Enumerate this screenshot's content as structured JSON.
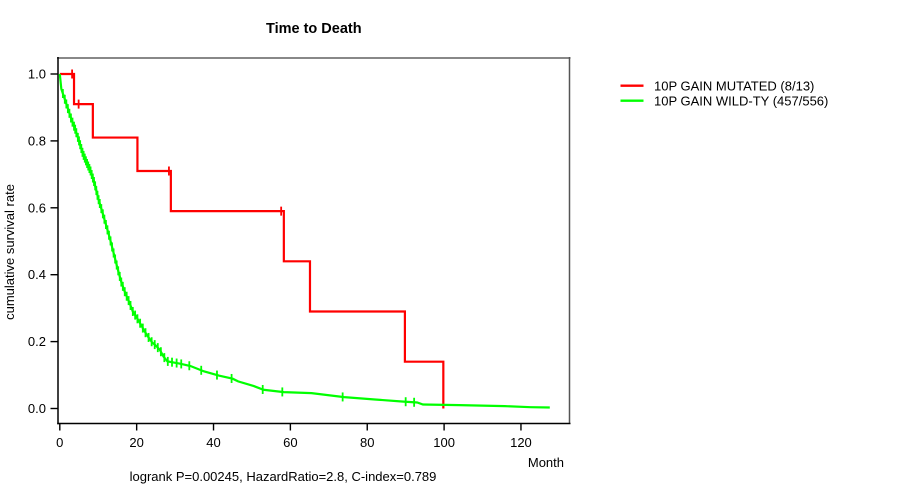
{
  "chart_data": {
    "type": "line",
    "subtype": "kaplan-meier-survival",
    "title": "Time to Death",
    "xlabel": "Month",
    "ylabel": "cumulative survival rate",
    "annotation": "logrank P=0.00245, HazardRatio=2.8, C-index=0.789",
    "xlim": [
      0,
      133
    ],
    "ylim": [
      0,
      1.04
    ],
    "x_ticks": [
      0,
      20,
      40,
      60,
      80,
      100,
      120
    ],
    "y_ticks": [
      0.0,
      0.2,
      0.4,
      0.6,
      0.8,
      1.0
    ],
    "y_tick_labels": [
      "0.0",
      "0.2",
      "0.4",
      "0.6",
      "0.8",
      "1.0"
    ],
    "grid": false,
    "legend_position": "right-outside",
    "series": [
      {
        "name": "10P GAIN MUTATED (8/13)",
        "color": "#ff0000",
        "style": "step",
        "points": [
          [
            0,
            1.0
          ],
          [
            3.7,
            0.91
          ],
          [
            8.6,
            0.81
          ],
          [
            20.2,
            0.71
          ],
          [
            28.9,
            0.59
          ],
          [
            58.3,
            0.44
          ],
          [
            65.1,
            0.29
          ],
          [
            89.8,
            0.14
          ],
          [
            99.8,
            0.0
          ]
        ],
        "censor_times": [
          3.2,
          4.9,
          28.4,
          57.6
        ]
      },
      {
        "name": "10P GAIN WILD-TY (457/556)",
        "color": "#00ff00",
        "style": "line",
        "points": [
          [
            0,
            1.0
          ],
          [
            0.4,
            0.955
          ],
          [
            1,
            0.935
          ],
          [
            2,
            0.9
          ],
          [
            3,
            0.865
          ],
          [
            4,
            0.835
          ],
          [
            5,
            0.8
          ],
          [
            6,
            0.762
          ],
          [
            7,
            0.735
          ],
          [
            8,
            0.71
          ],
          [
            9,
            0.675
          ],
          [
            10,
            0.628
          ],
          [
            11,
            0.59
          ],
          [
            12,
            0.55
          ],
          [
            13,
            0.51
          ],
          [
            14,
            0.465
          ],
          [
            15,
            0.42
          ],
          [
            16,
            0.378
          ],
          [
            17,
            0.346
          ],
          [
            18,
            0.32
          ],
          [
            19,
            0.29
          ],
          [
            20,
            0.272
          ],
          [
            21,
            0.253
          ],
          [
            22,
            0.232
          ],
          [
            23,
            0.214
          ],
          [
            24,
            0.198
          ],
          [
            25,
            0.188
          ],
          [
            26,
            0.176
          ],
          [
            27,
            0.155
          ],
          [
            28,
            0.141
          ],
          [
            31.3,
            0.134
          ],
          [
            34,
            0.127
          ],
          [
            37.5,
            0.111
          ],
          [
            41.5,
            0.098
          ],
          [
            45,
            0.089
          ],
          [
            46.4,
            0.081
          ],
          [
            50.5,
            0.067
          ],
          [
            53,
            0.056
          ],
          [
            58.3,
            0.049
          ],
          [
            65.5,
            0.046
          ],
          [
            74,
            0.034
          ],
          [
            82,
            0.027
          ],
          [
            89,
            0.021
          ],
          [
            93,
            0.018
          ],
          [
            94.5,
            0.012
          ],
          [
            104,
            0.01
          ],
          [
            115.8,
            0.007
          ],
          [
            122.5,
            0.004
          ],
          [
            127.5,
            0.003
          ]
        ],
        "censor_times": [
          0.8,
          1.3,
          1.7,
          2.1,
          2.5,
          2.9,
          3.3,
          3.7,
          4.0,
          4.3,
          4.7,
          5.0,
          5.3,
          5.6,
          5.9,
          6.2,
          6.5,
          6.8,
          7.1,
          7.4,
          7.7,
          8.0,
          8.3,
          8.6,
          8.9,
          9.2,
          9.5,
          9.8,
          10.1,
          10.4,
          10.8,
          11.2,
          11.6,
          12.0,
          12.4,
          12.8,
          13.2,
          13.6,
          14.0,
          14.4,
          14.8,
          15.2,
          15.6,
          16.0,
          16.4,
          16.9,
          17.4,
          17.9,
          18.4,
          19.0,
          19.6,
          20.2,
          20.9,
          21.6,
          22.3,
          23.1,
          23.9,
          24.7,
          25.5,
          26.3,
          27.2,
          28.1,
          29.2,
          30.4,
          31.6,
          33.7,
          36.8,
          40.9,
          44.7,
          52.8,
          57.9,
          73.6,
          90.0,
          92.2
        ]
      }
    ]
  },
  "colors": {
    "box_top": "#888888",
    "box_right": "#555555",
    "axis": "#000000",
    "text": "#000000",
    "background": "#ffffff"
  }
}
